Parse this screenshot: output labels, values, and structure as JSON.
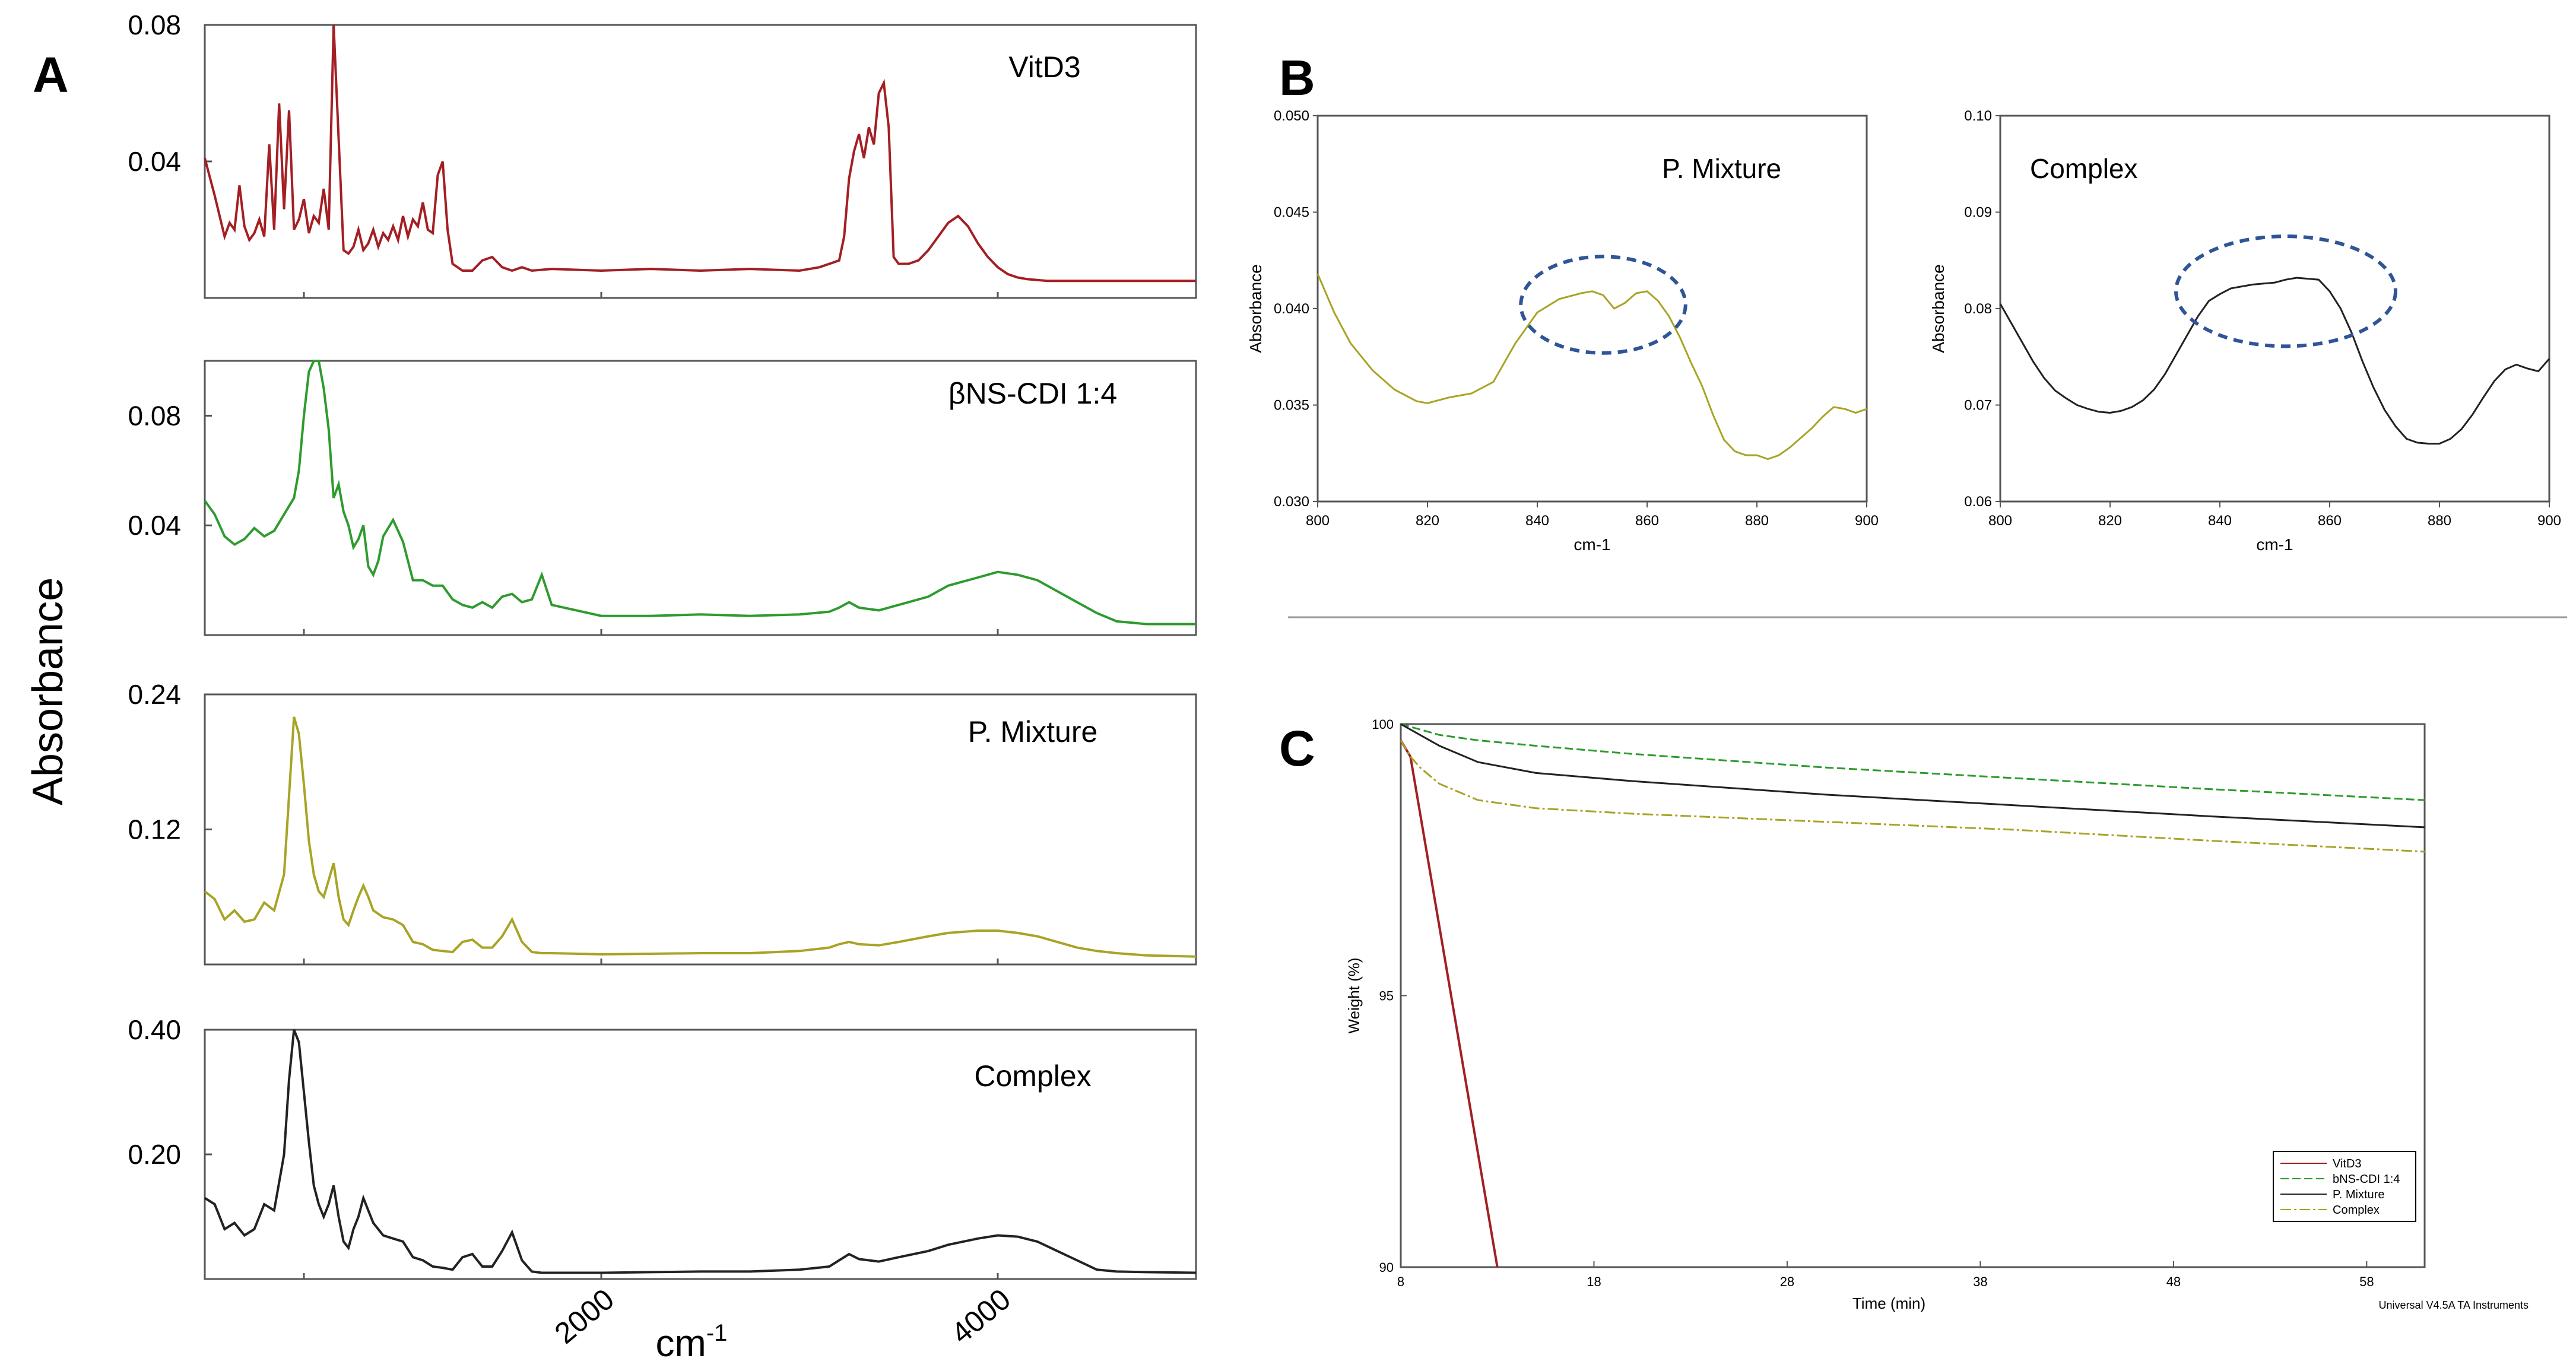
{
  "panels": {
    "A": "A",
    "B": "B",
    "C": "C"
  },
  "chart_data": [
    {
      "id": "A1",
      "type": "line",
      "label": "VitD3",
      "yticks": [
        "0.08",
        "0.04"
      ],
      "ytick_values": [
        0.08,
        0.04
      ],
      "ylim": [
        0,
        0.08
      ],
      "xlim": [
        0,
        100
      ],
      "color": "#a31f24",
      "x": [
        0,
        1,
        2,
        2.5,
        3,
        3.5,
        4,
        4.5,
        5,
        5.5,
        6,
        6.5,
        7,
        7.5,
        8,
        8.5,
        9,
        9.5,
        10,
        10.5,
        11,
        11.5,
        12,
        12.5,
        13,
        14,
        14.5,
        15,
        15.5,
        16,
        16.5,
        17,
        17.5,
        18,
        18.5,
        19,
        19.5,
        20,
        20.5,
        21,
        21.5,
        22,
        22.5,
        23,
        23.5,
        24,
        24.5,
        25,
        26,
        27,
        28,
        29,
        30,
        31,
        32,
        33,
        35,
        40,
        45,
        50,
        55,
        60,
        62,
        64,
        64.5,
        65,
        65.5,
        66,
        66.5,
        67,
        67.5,
        68,
        68.5,
        69,
        69.5,
        70,
        71,
        72,
        73,
        74,
        75,
        76,
        77,
        78,
        79,
        80,
        81,
        82,
        83,
        85,
        90,
        100
      ],
      "y": [
        0.041,
        0.03,
        0.018,
        0.022,
        0.02,
        0.033,
        0.021,
        0.017,
        0.019,
        0.023,
        0.018,
        0.045,
        0.02,
        0.057,
        0.026,
        0.055,
        0.02,
        0.023,
        0.029,
        0.019,
        0.024,
        0.022,
        0.032,
        0.02,
        0.08,
        0.014,
        0.013,
        0.015,
        0.02,
        0.014,
        0.016,
        0.02,
        0.015,
        0.019,
        0.017,
        0.021,
        0.017,
        0.024,
        0.018,
        0.023,
        0.021,
        0.028,
        0.02,
        0.019,
        0.036,
        0.04,
        0.02,
        0.01,
        0.008,
        0.008,
        0.011,
        0.012,
        0.009,
        0.008,
        0.009,
        0.008,
        0.0085,
        0.008,
        0.0085,
        0.008,
        0.0085,
        0.008,
        0.009,
        0.011,
        0.018,
        0.035,
        0.043,
        0.048,
        0.041,
        0.05,
        0.045,
        0.06,
        0.063,
        0.05,
        0.012,
        0.01,
        0.01,
        0.011,
        0.014,
        0.018,
        0.022,
        0.024,
        0.021,
        0.016,
        0.012,
        0.009,
        0.007,
        0.006,
        0.0055,
        0.005,
        0.005,
        0.005
      ]
    },
    {
      "id": "A2",
      "type": "line",
      "label": "βNS-CDI 1:4",
      "yticks": [
        "0.08",
        "0.04"
      ],
      "ytick_values": [
        0.08,
        0.04
      ],
      "ylim": [
        0,
        0.1
      ],
      "xlim": [
        0,
        100
      ],
      "color": "#2e9b2e",
      "x": [
        0,
        1,
        2,
        3,
        4,
        5,
        6,
        7,
        8,
        9,
        9.5,
        10,
        10.5,
        11,
        11.5,
        12,
        12.5,
        13,
        13.5,
        14,
        14.5,
        15,
        15.5,
        16,
        16.5,
        17,
        17.5,
        18,
        19,
        20,
        21,
        22,
        23,
        24,
        25,
        26,
        27,
        28,
        29,
        30,
        31,
        32,
        33,
        34,
        35,
        40,
        45,
        50,
        55,
        60,
        63,
        64,
        65,
        66,
        68,
        70,
        73,
        75,
        78,
        80,
        82,
        84,
        86,
        88,
        90,
        92,
        95,
        100
      ],
      "y": [
        0.049,
        0.044,
        0.036,
        0.033,
        0.035,
        0.039,
        0.036,
        0.038,
        0.044,
        0.05,
        0.06,
        0.08,
        0.096,
        0.1,
        0.1,
        0.09,
        0.075,
        0.05,
        0.055,
        0.045,
        0.04,
        0.032,
        0.035,
        0.04,
        0.025,
        0.022,
        0.027,
        0.036,
        0.042,
        0.034,
        0.02,
        0.02,
        0.018,
        0.018,
        0.013,
        0.011,
        0.01,
        0.012,
        0.01,
        0.014,
        0.015,
        0.012,
        0.013,
        0.022,
        0.011,
        0.007,
        0.007,
        0.0075,
        0.007,
        0.0075,
        0.0085,
        0.01,
        0.012,
        0.01,
        0.009,
        0.011,
        0.014,
        0.018,
        0.021,
        0.023,
        0.022,
        0.02,
        0.016,
        0.012,
        0.008,
        0.005,
        0.004,
        0.004
      ]
    },
    {
      "id": "A3",
      "type": "line",
      "label": "P. Mixture",
      "yticks": [
        "0.24",
        "0.12"
      ],
      "ytick_values": [
        0.24,
        0.12
      ],
      "ylim": [
        0,
        0.24
      ],
      "xlim": [
        0,
        100
      ],
      "color": "#a8a426",
      "x": [
        0,
        1,
        2,
        3,
        4,
        5,
        6,
        7,
        8,
        8.5,
        9,
        9.5,
        10,
        10.5,
        11,
        11.5,
        12,
        12.5,
        13,
        13.5,
        14,
        14.5,
        15,
        15.5,
        16,
        16.5,
        17,
        18,
        19,
        20,
        21,
        22,
        23,
        24,
        25,
        26,
        27,
        28,
        29,
        30,
        31,
        32,
        33,
        34,
        35,
        40,
        45,
        50,
        55,
        60,
        63,
        64,
        65,
        66,
        68,
        70,
        73,
        75,
        78,
        80,
        82,
        84,
        86,
        88,
        90,
        92,
        95,
        100
      ],
      "y": [
        0.065,
        0.058,
        0.04,
        0.048,
        0.038,
        0.04,
        0.055,
        0.048,
        0.08,
        0.15,
        0.22,
        0.205,
        0.16,
        0.11,
        0.08,
        0.065,
        0.06,
        0.075,
        0.09,
        0.06,
        0.04,
        0.035,
        0.048,
        0.06,
        0.07,
        0.06,
        0.048,
        0.042,
        0.04,
        0.035,
        0.02,
        0.018,
        0.013,
        0.012,
        0.011,
        0.02,
        0.022,
        0.015,
        0.015,
        0.025,
        0.04,
        0.02,
        0.011,
        0.01,
        0.01,
        0.009,
        0.0095,
        0.01,
        0.01,
        0.012,
        0.015,
        0.018,
        0.02,
        0.018,
        0.017,
        0.02,
        0.025,
        0.028,
        0.03,
        0.03,
        0.028,
        0.025,
        0.02,
        0.015,
        0.012,
        0.01,
        0.008,
        0.007
      ]
    },
    {
      "id": "A4",
      "type": "line",
      "label": "Complex",
      "yticks": [
        "0.40",
        "0.20"
      ],
      "ytick_values": [
        0.4,
        0.2
      ],
      "ylim": [
        0,
        0.4
      ],
      "xlim": [
        0,
        100
      ],
      "color": "#222222",
      "x": [
        0,
        1,
        2,
        3,
        4,
        5,
        6,
        7,
        8,
        8.5,
        9,
        9.5,
        10,
        10.5,
        11,
        11.5,
        12,
        12.5,
        13,
        13.5,
        14,
        14.5,
        15,
        15.5,
        16,
        16.5,
        17,
        18,
        19,
        20,
        21,
        22,
        23,
        24,
        25,
        26,
        27,
        28,
        29,
        30,
        31,
        32,
        33,
        34,
        35,
        40,
        45,
        50,
        55,
        60,
        63,
        64,
        65,
        66,
        68,
        70,
        73,
        75,
        78,
        80,
        82,
        84,
        86,
        88,
        90,
        92,
        95,
        100
      ],
      "y": [
        0.13,
        0.12,
        0.08,
        0.09,
        0.07,
        0.08,
        0.12,
        0.11,
        0.2,
        0.32,
        0.4,
        0.38,
        0.3,
        0.22,
        0.15,
        0.12,
        0.1,
        0.12,
        0.15,
        0.1,
        0.06,
        0.05,
        0.08,
        0.1,
        0.13,
        0.11,
        0.09,
        0.07,
        0.065,
        0.06,
        0.035,
        0.03,
        0.02,
        0.018,
        0.015,
        0.035,
        0.04,
        0.02,
        0.02,
        0.045,
        0.075,
        0.03,
        0.012,
        0.01,
        0.01,
        0.01,
        0.011,
        0.012,
        0.012,
        0.015,
        0.02,
        0.03,
        0.04,
        0.032,
        0.028,
        0.035,
        0.045,
        0.055,
        0.065,
        0.07,
        0.068,
        0.06,
        0.045,
        0.03,
        0.015,
        0.012,
        0.011,
        0.01
      ]
    },
    {
      "id": "A-axis",
      "type": "axis",
      "ylabel": "Absorbance",
      "xlabel": "cm",
      "xlabel_sup": "-1",
      "xticks": [
        "2000",
        "4000"
      ],
      "xtick_positions": [
        40,
        80
      ]
    },
    {
      "id": "B1",
      "type": "line",
      "label": "P. Mixture",
      "xlabel": "cm-1",
      "ylabel": "Absorbance",
      "xlim": [
        800,
        900
      ],
      "ylim": [
        0.03,
        0.05
      ],
      "xticks": [
        "800",
        "820",
        "840",
        "860",
        "880",
        "900"
      ],
      "xtick_values": [
        800,
        820,
        840,
        860,
        880,
        900
      ],
      "yticks": [
        "0.030",
        "0.035",
        "0.040",
        "0.045",
        "0.050"
      ],
      "ytick_values": [
        0.03,
        0.035,
        0.04,
        0.045,
        0.05
      ],
      "color": "#a8a426",
      "x": [
        800,
        803,
        806,
        810,
        814,
        818,
        820,
        824,
        828,
        832,
        836,
        840,
        844,
        848,
        850,
        852,
        854,
        856,
        858,
        860,
        862,
        864,
        866,
        868,
        870,
        872,
        874,
        876,
        878,
        880,
        882,
        884,
        886,
        888,
        890,
        892,
        894,
        896,
        898,
        900
      ],
      "y": [
        0.0418,
        0.0398,
        0.0382,
        0.0368,
        0.0358,
        0.0352,
        0.0351,
        0.0354,
        0.0356,
        0.0362,
        0.0382,
        0.0398,
        0.0405,
        0.0408,
        0.0409,
        0.0407,
        0.04,
        0.0403,
        0.0408,
        0.0409,
        0.0404,
        0.0396,
        0.0385,
        0.0372,
        0.036,
        0.0345,
        0.0332,
        0.0326,
        0.0324,
        0.0324,
        0.0322,
        0.0324,
        0.0328,
        0.0333,
        0.0338,
        0.0344,
        0.0349,
        0.0348,
        0.0346,
        0.0348
      ],
      "highlight_ellipse": {
        "cx": 852,
        "cy": 0.0402,
        "rx": 15,
        "ry": 0.0025
      }
    },
    {
      "id": "B2",
      "type": "line",
      "label": "Complex",
      "xlabel": "cm-1",
      "ylabel": "Absorbance",
      "xlim": [
        800,
        900
      ],
      "ylim": [
        0.06,
        0.1
      ],
      "xticks": [
        "800",
        "820",
        "840",
        "860",
        "880",
        "900"
      ],
      "xtick_values": [
        800,
        820,
        840,
        860,
        880,
        900
      ],
      "yticks": [
        "0.06",
        "0.07",
        "0.08",
        "0.09",
        "0.10"
      ],
      "ytick_values": [
        0.06,
        0.07,
        0.08,
        0.09,
        0.1
      ],
      "color": "#222222",
      "x": [
        800,
        802,
        804,
        806,
        808,
        810,
        812,
        814,
        816,
        818,
        820,
        822,
        824,
        826,
        828,
        830,
        832,
        834,
        836,
        838,
        840,
        842,
        844,
        846,
        848,
        850,
        852,
        854,
        856,
        858,
        860,
        862,
        864,
        866,
        868,
        870,
        872,
        874,
        876,
        878,
        880,
        882,
        884,
        886,
        888,
        890,
        892,
        894,
        896,
        898,
        900
      ],
      "y": [
        0.0805,
        0.0785,
        0.0765,
        0.0745,
        0.0728,
        0.0715,
        0.0707,
        0.07,
        0.0696,
        0.0693,
        0.0692,
        0.0694,
        0.0698,
        0.0705,
        0.0716,
        0.0732,
        0.0752,
        0.0772,
        0.0792,
        0.0808,
        0.0815,
        0.0821,
        0.0823,
        0.0825,
        0.0826,
        0.0827,
        0.083,
        0.0832,
        0.0831,
        0.083,
        0.0818,
        0.08,
        0.0775,
        0.0745,
        0.0718,
        0.0695,
        0.0678,
        0.0665,
        0.0661,
        0.066,
        0.066,
        0.0665,
        0.0675,
        0.069,
        0.0708,
        0.0725,
        0.0737,
        0.0742,
        0.0738,
        0.0735,
        0.0748
      ],
      "highlight_ellipse": {
        "cx": 852,
        "cy": 0.0818,
        "rx": 20,
        "ry": 0.0057
      }
    },
    {
      "id": "C",
      "type": "line",
      "xlabel": "Time (min)",
      "ylabel": "Weight (%)",
      "xlim": [
        8,
        61
      ],
      "ylim": [
        90,
        100
      ],
      "xticks": [
        "8",
        "18",
        "28",
        "38",
        "48",
        "58"
      ],
      "xtick_values": [
        8,
        18,
        28,
        38,
        48,
        58
      ],
      "yticks": [
        "100",
        "95",
        "90"
      ],
      "ytick_values": [
        100,
        95,
        90
      ],
      "footer": "Universal V4.5A TA Instruments",
      "legend_items": [
        "VitD3",
        "bNS-CDI 1:4",
        "P. Mixture",
        "Complex"
      ],
      "series": [
        {
          "name": "VitD3",
          "color": "#a31f24",
          "x": [
            8,
            8.5,
            13
          ],
          "y": [
            99.7,
            99.4,
            90
          ]
        },
        {
          "name": "bNS-CDI 1:4",
          "color": "#2e9b2e",
          "x": [
            8,
            9,
            10,
            12,
            15,
            20,
            30,
            40,
            50,
            61
          ],
          "y": [
            100,
            99.9,
            99.8,
            99.7,
            99.6,
            99.45,
            99.2,
            99.0,
            98.8,
            98.6
          ]
        },
        {
          "name": "P. Mixture",
          "color": "#222222",
          "x": [
            8,
            9,
            10,
            12,
            15,
            20,
            30,
            40,
            50,
            61
          ],
          "y": [
            100,
            99.8,
            99.6,
            99.3,
            99.1,
            98.95,
            98.7,
            98.5,
            98.3,
            98.1
          ]
        },
        {
          "name": "Complex",
          "color": "#a8a426",
          "x": [
            8,
            8.5,
            9,
            10,
            12,
            15,
            20,
            30,
            40,
            50,
            61
          ],
          "y": [
            99.7,
            99.4,
            99.2,
            98.9,
            98.6,
            98.45,
            98.35,
            98.2,
            98.05,
            97.85,
            97.65
          ]
        }
      ]
    }
  ]
}
